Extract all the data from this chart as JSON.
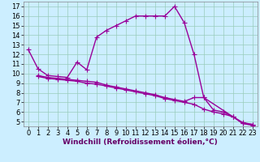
{
  "line1_x": [
    0,
    1,
    2,
    3,
    4,
    5,
    6,
    7,
    8,
    9,
    10,
    11,
    12,
    13,
    14,
    15,
    16,
    17,
    18,
    21,
    22,
    23
  ],
  "line1_y": [
    12.5,
    10.5,
    9.8,
    9.7,
    9.6,
    11.2,
    10.4,
    13.8,
    14.5,
    15.0,
    15.5,
    16.0,
    16.0,
    16.0,
    16.0,
    17.0,
    15.3,
    12.0,
    7.5,
    5.5,
    4.8,
    4.7
  ],
  "line2_x": [
    1,
    2,
    3,
    4,
    5,
    6,
    7,
    8,
    9,
    10,
    11,
    12,
    13,
    14,
    15,
    16,
    17,
    18,
    19,
    20,
    21,
    22,
    23
  ],
  "line2_y": [
    9.8,
    9.6,
    9.5,
    9.4,
    9.3,
    9.2,
    9.1,
    8.8,
    8.6,
    8.4,
    8.2,
    8.0,
    7.8,
    7.5,
    7.3,
    7.1,
    7.5,
    7.5,
    6.2,
    6.0,
    5.5,
    4.9,
    4.7
  ],
  "line3_x": [
    1,
    2,
    3,
    4,
    5,
    6,
    7,
    8,
    9,
    10,
    11,
    12,
    13,
    14,
    15,
    16,
    17,
    18,
    19,
    20,
    21,
    22,
    23
  ],
  "line3_y": [
    9.7,
    9.5,
    9.4,
    9.3,
    9.2,
    9.0,
    8.9,
    8.7,
    8.5,
    8.3,
    8.1,
    7.9,
    7.7,
    7.4,
    7.2,
    7.0,
    6.8,
    6.3,
    6.0,
    5.8,
    5.5,
    4.8,
    4.6
  ],
  "line_color": "#990099",
  "bg_color": "#cceeff",
  "grid_color": "#99ccbb",
  "xlabel": "Windchill (Refroidissement éolien,°C)",
  "xlim": [
    -0.5,
    23.5
  ],
  "ylim": [
    4.5,
    17.5
  ],
  "xticks": [
    0,
    1,
    2,
    3,
    4,
    5,
    6,
    7,
    8,
    9,
    10,
    11,
    12,
    13,
    14,
    15,
    16,
    17,
    18,
    19,
    20,
    21,
    22,
    23
  ],
  "yticks": [
    5,
    6,
    7,
    8,
    9,
    10,
    11,
    12,
    13,
    14,
    15,
    16,
    17
  ],
  "marker": "+",
  "markersize": 4,
  "linewidth": 1.0,
  "xlabel_fontsize": 6.5,
  "tick_fontsize": 6.0
}
